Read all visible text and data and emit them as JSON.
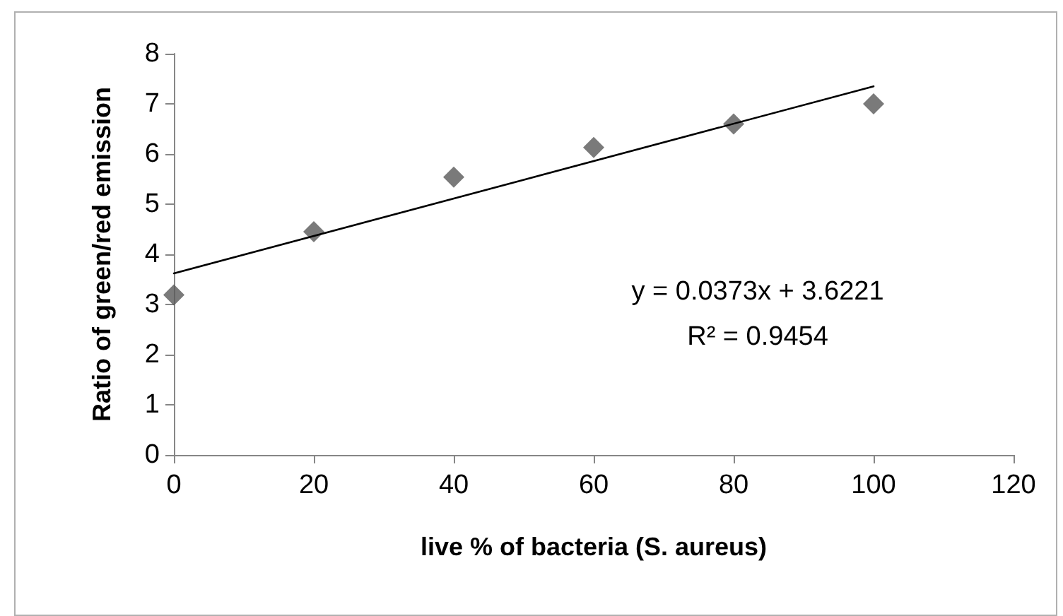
{
  "chart_data": {
    "type": "scatter",
    "xlabel": "live % of bacteria (S. aureus)",
    "ylabel": "Ratio of green/red emission",
    "x": [
      0,
      20,
      40,
      60,
      80,
      100
    ],
    "series": [
      {
        "color": "#595959",
        "marker": "diamond",
        "values": [
          3.19,
          4.45,
          5.54,
          6.13,
          6.6,
          7.0
        ]
      },
      {
        "type": "line",
        "color": "#000000",
        "marker": "none",
        "line_style": "solid",
        "x": [
          0,
          100
        ],
        "values": [
          3.62,
          7.35
        ]
      }
    ],
    "annotations": [
      "y = 0.0373x + 3.6221",
      "R² = 0.9454"
    ],
    "xlim": [
      0,
      120
    ],
    "xticks": [
      0,
      20,
      40,
      60,
      80,
      100,
      120
    ],
    "ylim": [
      0,
      8
    ],
    "yticks": [
      0,
      1,
      2,
      3,
      4,
      5,
      6,
      7,
      8
    ],
    "grid": false
  }
}
